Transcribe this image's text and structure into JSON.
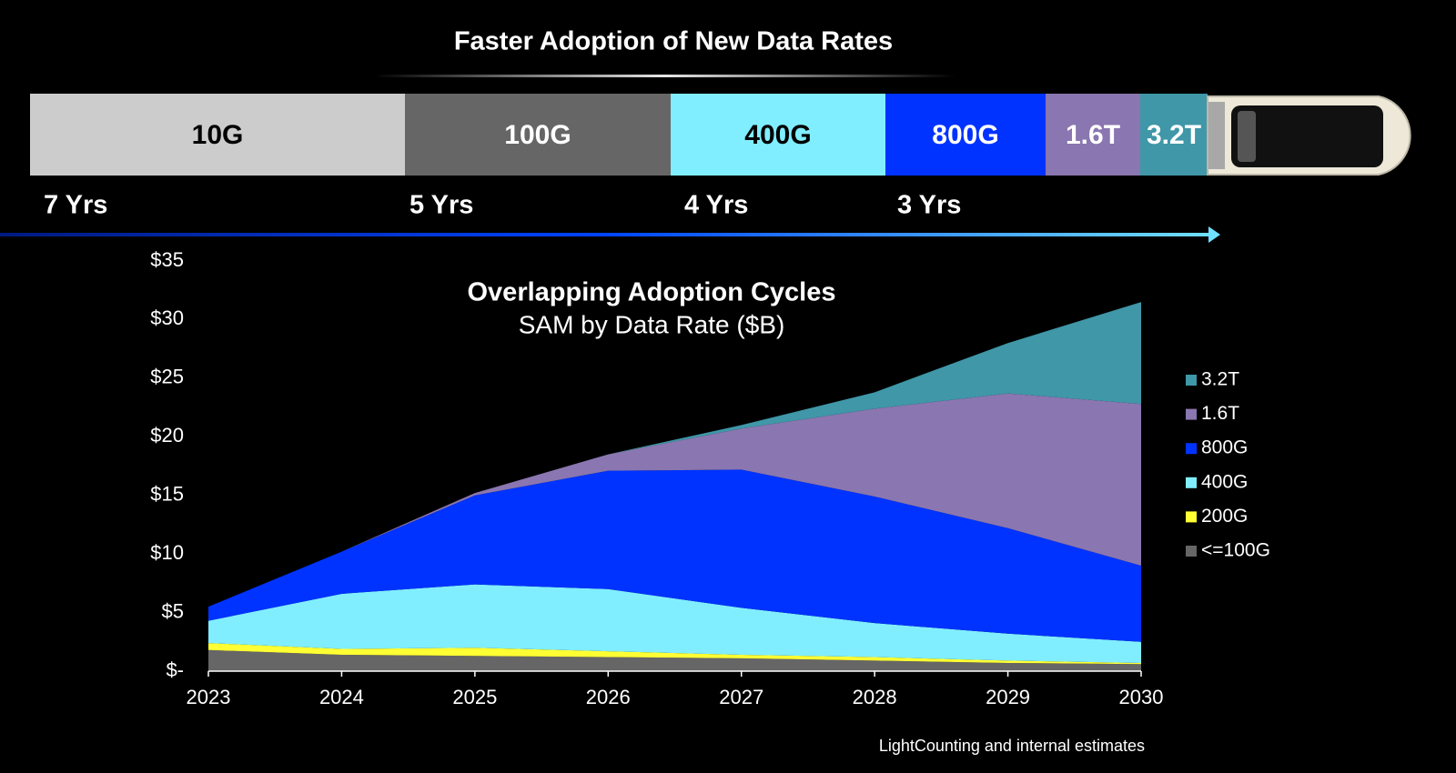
{
  "adoption_bar": {
    "title": "Faster Adoption of New Data Rates",
    "segments": [
      {
        "label": "10G",
        "color": "#cccccc",
        "text_color": "#000000"
      },
      {
        "label": "100G",
        "color": "#666666",
        "text_color": "#ffffff"
      },
      {
        "label": "400G",
        "color": "#80eeff",
        "text_color": "#000000"
      },
      {
        "label": "800G",
        "color": "#0033ff",
        "text_color": "#ffffff"
      },
      {
        "label": "1.6T",
        "color": "#8a76b0",
        "text_color": "#ffffff"
      },
      {
        "label": "3.2T",
        "color": "#3f97a8",
        "text_color": "#ffffff"
      }
    ],
    "durations": [
      "7 Yrs",
      "5 Yrs",
      "4 Yrs",
      "3 Yrs"
    ]
  },
  "chart_data": {
    "type": "stacked_area",
    "title": "Overlapping Adoption Cycles",
    "subtitle": "SAM by Data Rate ($B)",
    "source": "LightCounting and internal estimates",
    "categories": [
      "2023",
      "2024",
      "2025",
      "2026",
      "2027",
      "2028",
      "2029",
      "2030"
    ],
    "ylim": [
      0,
      35
    ],
    "yticks": [
      {
        "value": 0,
        "label": "$-"
      },
      {
        "value": 5,
        "label": "$5"
      },
      {
        "value": 10,
        "label": "$10"
      },
      {
        "value": 15,
        "label": "$15"
      },
      {
        "value": 20,
        "label": "$20"
      },
      {
        "value": 25,
        "label": "$25"
      },
      {
        "value": 30,
        "label": "$30"
      },
      {
        "value": 35,
        "label": "$35"
      }
    ],
    "legend": "right",
    "series": [
      {
        "name": "<=100G",
        "color": "#666666",
        "values": [
          1.8,
          1.4,
          1.3,
          1.2,
          1.1,
          0.9,
          0.7,
          0.6
        ]
      },
      {
        "name": "200G",
        "color": "#ffff33",
        "values": [
          0.6,
          0.5,
          0.7,
          0.5,
          0.3,
          0.3,
          0.2,
          0.1
        ]
      },
      {
        "name": "400G",
        "color": "#80eeff",
        "values": [
          1.9,
          4.7,
          5.4,
          5.3,
          4.0,
          2.9,
          2.3,
          1.8
        ]
      },
      {
        "name": "800G",
        "color": "#0033ff",
        "values": [
          1.2,
          3.6,
          7.6,
          10.1,
          11.8,
          10.8,
          9.0,
          6.5
        ]
      },
      {
        "name": "1.6T",
        "color": "#8a76b0",
        "values": [
          0,
          0,
          0.2,
          1.4,
          3.5,
          7.5,
          11.5,
          13.8
        ]
      },
      {
        "name": "3.2T",
        "color": "#3f97a8",
        "values": [
          0,
          0,
          0,
          0,
          0.3,
          1.4,
          4.3,
          8.7
        ]
      }
    ]
  }
}
